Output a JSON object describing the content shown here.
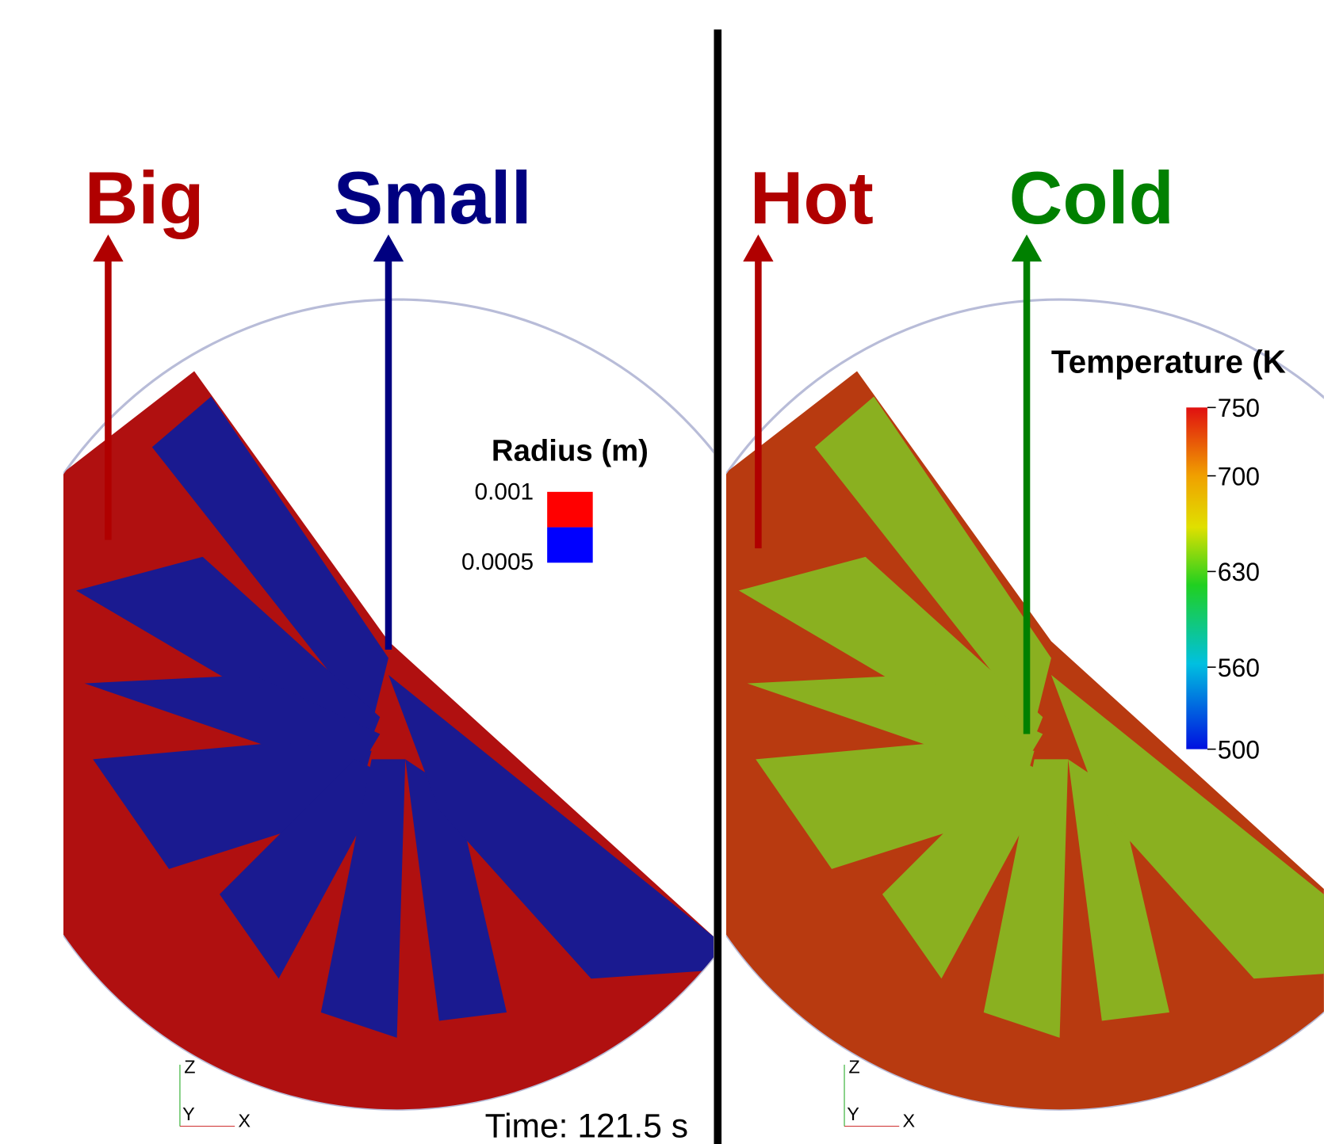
{
  "left_panel": {
    "labels": [
      "Big",
      "Small"
    ],
    "legend": {
      "title": "Radius (m)",
      "max": 0.001,
      "min": 0.0005
    },
    "axes": [
      "Z",
      "Y",
      "X"
    ],
    "time": "Time: 121.5 s"
  },
  "right_panel": {
    "labels": [
      "Hot",
      "Cold"
    ],
    "colorbar": {
      "title": "Temperature (K",
      "ticks": [
        750,
        700,
        630,
        560,
        500
      ]
    },
    "axes": [
      "Z",
      "Y",
      "X"
    ]
  }
}
